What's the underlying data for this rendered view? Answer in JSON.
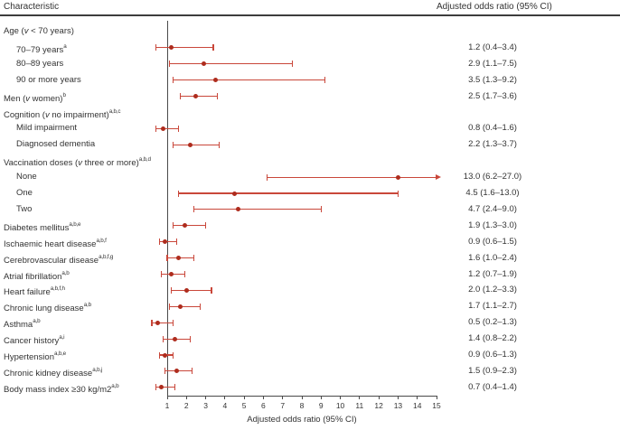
{
  "header": {
    "left": "Characteristic",
    "right": "Adjusted odds ratio (95% CI)"
  },
  "colors": {
    "ci_line": "#c9473a",
    "dot": "#ae2c1d",
    "axis": "#4a4a4a",
    "text": "#333333"
  },
  "chart_data": {
    "type": "forest",
    "xlabel": "Adjusted odds ratio (95% CI)",
    "xlim": [
      1,
      15
    ],
    "x_ticks": [
      1,
      2,
      3,
      4,
      5,
      6,
      7,
      8,
      9,
      10,
      11,
      12,
      13,
      14,
      15
    ],
    "grid": false,
    "reference_value": 1,
    "rows": [
      {
        "label": "Age (v < 70 years)",
        "sup": "",
        "indent": 0,
        "est": null,
        "lo": null,
        "hi": null,
        "ci_text": ""
      },
      {
        "label": "70–79 years",
        "sup": "a",
        "indent": 1,
        "est": 1.2,
        "lo": 0.4,
        "hi": 3.4,
        "ci_text": "1.2 (0.4–3.4)"
      },
      {
        "label": "80–89 years",
        "sup": "",
        "indent": 1,
        "est": 2.9,
        "lo": 1.1,
        "hi": 7.5,
        "ci_text": "2.9 (1.1–7.5)"
      },
      {
        "label": "90 or more years",
        "sup": "",
        "indent": 1,
        "est": 3.5,
        "lo": 1.3,
        "hi": 9.2,
        "ci_text": "3.5 (1.3–9.2)"
      },
      {
        "label": "Men (v women)",
        "sup": "b",
        "indent": 0,
        "est": 2.5,
        "lo": 1.7,
        "hi": 3.6,
        "ci_text": "2.5 (1.7–3.6)"
      },
      {
        "label": "Cognition (v no impairment)",
        "sup": "a,b,c",
        "indent": 0,
        "est": null,
        "lo": null,
        "hi": null,
        "ci_text": ""
      },
      {
        "label": "Mild impairment",
        "sup": "",
        "indent": 1,
        "est": 0.8,
        "lo": 0.4,
        "hi": 1.6,
        "ci_text": "0.8 (0.4–1.6)"
      },
      {
        "label": "Diagnosed dementia",
        "sup": "",
        "indent": 1,
        "est": 2.2,
        "lo": 1.3,
        "hi": 3.7,
        "ci_text": "2.2 (1.3–3.7)"
      },
      {
        "label": "Vaccination doses (v three or more)",
        "sup": "a,b,d",
        "indent": 0,
        "est": null,
        "lo": null,
        "hi": null,
        "ci_text": ""
      },
      {
        "label": "None",
        "sup": "",
        "indent": 1,
        "est": 13.0,
        "lo": 6.2,
        "hi": 27.0,
        "ci_text": "13.0 (6.2–27.0)"
      },
      {
        "label": "One",
        "sup": "",
        "indent": 1,
        "est": 4.5,
        "lo": 1.6,
        "hi": 13.0,
        "ci_text": "4.5 (1.6–13.0)"
      },
      {
        "label": "Two",
        "sup": "",
        "indent": 1,
        "est": 4.7,
        "lo": 2.4,
        "hi": 9.0,
        "ci_text": "4.7 (2.4–9.0)"
      },
      {
        "label": "Diabetes mellitus",
        "sup": "a,b,e",
        "indent": 0,
        "est": 1.9,
        "lo": 1.3,
        "hi": 3.0,
        "ci_text": "1.9 (1.3–3.0)"
      },
      {
        "label": "Ischaemic heart disease",
        "sup": "a,b,f",
        "indent": 0,
        "est": 0.9,
        "lo": 0.6,
        "hi": 1.5,
        "ci_text": "0.9 (0.6–1.5)"
      },
      {
        "label": "Cerebrovascular disease",
        "sup": "a,b,f,g",
        "indent": 0,
        "est": 1.6,
        "lo": 1.0,
        "hi": 2.4,
        "ci_text": "1.6 (1.0–2.4)"
      },
      {
        "label": "Atrial fibrillation",
        "sup": "a,b",
        "indent": 0,
        "est": 1.2,
        "lo": 0.7,
        "hi": 1.9,
        "ci_text": "1.2 (0.7–1.9)"
      },
      {
        "label": "Heart failure",
        "sup": "a,b,f,h",
        "indent": 0,
        "est": 2.0,
        "lo": 1.2,
        "hi": 3.3,
        "ci_text": "2.0 (1.2–3.3)"
      },
      {
        "label": "Chronic lung disease",
        "sup": "a,b",
        "indent": 0,
        "est": 1.7,
        "lo": 1.1,
        "hi": 2.7,
        "ci_text": "1.7 (1.1–2.7)"
      },
      {
        "label": "Asthma",
        "sup": "a,b",
        "indent": 0,
        "est": 0.5,
        "lo": 0.2,
        "hi": 1.3,
        "ci_text": "0.5 (0.2–1.3)"
      },
      {
        "label": "Cancer history",
        "sup": "a,i",
        "indent": 0,
        "est": 1.4,
        "lo": 0.8,
        "hi": 2.2,
        "ci_text": "1.4 (0.8–2.2)"
      },
      {
        "label": "Hypertension",
        "sup": "a,b,e",
        "indent": 0,
        "est": 0.9,
        "lo": 0.6,
        "hi": 1.3,
        "ci_text": "0.9 (0.6–1.3)"
      },
      {
        "label": "Chronic kidney disease",
        "sup": "a,b,j",
        "indent": 0,
        "est": 1.5,
        "lo": 0.9,
        "hi": 2.3,
        "ci_text": "1.5 (0.9–2.3)"
      },
      {
        "label": "Body mass index ≥30 kg/m2",
        "sup": "a,b",
        "indent": 0,
        "est": 0.7,
        "lo": 0.4,
        "hi": 1.4,
        "ci_text": "0.7 (0.4–1.4)"
      }
    ]
  }
}
